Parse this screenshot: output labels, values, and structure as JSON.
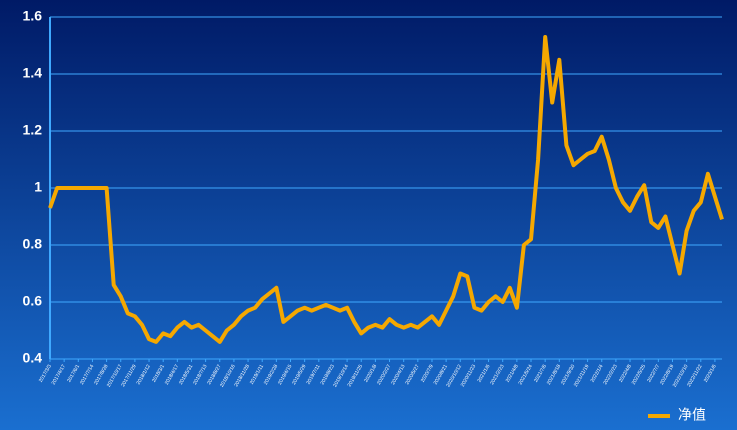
{
  "chart_data": {
    "type": "line",
    "categories": [
      "2017/3/3",
      null,
      "2017/4/17",
      null,
      "2017/6/1",
      null,
      "2017/7/14",
      null,
      "2017/8/28",
      null,
      "2017/10/17",
      null,
      "2017/11/29",
      null,
      "2018/1/12",
      null,
      "2018/3/1",
      null,
      "2018/4/17",
      null,
      "2018/5/31",
      null,
      "2018/7/13",
      null,
      "2018/8/27",
      null,
      "2018/10/16",
      null,
      "2018/11/28",
      null,
      "2019/1/11",
      null,
      "2019/2/28",
      null,
      "2019/4/15",
      null,
      "2019/5/29",
      null,
      "2019/7/11",
      null,
      "2019/8/23",
      null,
      "2019/10/14",
      null,
      "2019/11/25",
      null,
      "2020/1/8",
      null,
      "2020/2/27",
      null,
      "2020/4/13",
      null,
      "2020/5/27",
      null,
      "2020/7/9",
      null,
      "2020/8/21",
      null,
      "2020/10/12",
      null,
      "2020/11/23",
      null,
      "2021/1/6",
      null,
      "2021/2/23",
      null,
      "2021/4/8",
      null,
      "2021/5/24",
      null,
      "2021/7/6",
      null,
      "2021/8/18",
      null,
      "2021/9/30",
      null,
      "2021/11/19",
      null,
      "2022/1/4",
      null,
      "2022/2/23",
      null,
      "2022/4/8",
      null,
      "2022/5/25",
      null,
      "2022/7/7",
      null,
      "2022/8/19",
      null,
      "2022/10/10",
      null,
      "2022/11/22",
      null,
      "2023/1/6",
      null
    ],
    "series": [
      {
        "name": "净值",
        "color": "#f5a800",
        "values": [
          0.93,
          1.0,
          1.0,
          1.0,
          1.0,
          1.0,
          1.0,
          1.0,
          1.0,
          0.66,
          0.62,
          0.56,
          0.55,
          0.52,
          0.47,
          0.46,
          0.49,
          0.48,
          0.51,
          0.53,
          0.51,
          0.52,
          0.5,
          0.48,
          0.46,
          0.5,
          0.52,
          0.55,
          0.57,
          0.58,
          0.61,
          0.63,
          0.65,
          0.53,
          0.55,
          0.57,
          0.58,
          0.57,
          0.58,
          0.59,
          0.58,
          0.57,
          0.58,
          0.53,
          0.49,
          0.51,
          0.52,
          0.51,
          0.54,
          0.52,
          0.51,
          0.52,
          0.51,
          0.53,
          0.55,
          0.52,
          0.57,
          0.62,
          0.7,
          0.69,
          0.58,
          0.57,
          0.6,
          0.62,
          0.6,
          0.65,
          0.58,
          0.8,
          0.82,
          1.1,
          1.53,
          1.3,
          1.45,
          1.15,
          1.08,
          1.1,
          1.12,
          1.13,
          1.18,
          1.1,
          1.0,
          0.95,
          0.92,
          0.97,
          1.01,
          0.88,
          0.86,
          0.9,
          0.8,
          0.7,
          0.85,
          0.92,
          0.95,
          1.05,
          0.97,
          0.89
        ]
      }
    ],
    "ylim": [
      0.4,
      1.6
    ],
    "yticks": [
      {
        "value": 0.4,
        "label": "0.4"
      },
      {
        "value": 0.6,
        "label": "0.6"
      },
      {
        "value": 0.8,
        "label": "0.8"
      },
      1,
      {
        "value": 1.2,
        "label": "1.2"
      },
      {
        "value": 1.4,
        "label": "1.4"
      },
      {
        "value": 1.6,
        "label": "1.6"
      }
    ],
    "grid": true,
    "legend": "bottom-right"
  }
}
